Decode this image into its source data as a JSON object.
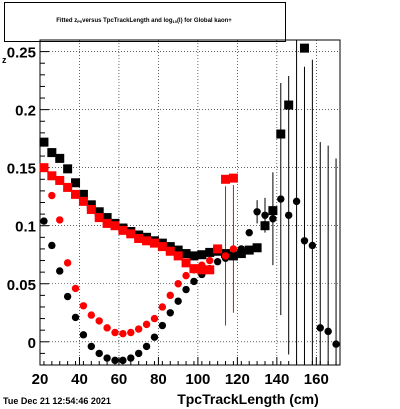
{
  "chart_data": {
    "type": "scatter",
    "title": "Fitted z_P0 versus TpcTrackLength and log_10(l) for Global kaon+",
    "title_parts": {
      "pre": "Fitted  z",
      "sub1": "P0",
      "mid": "  versus TpcTrackLength and log",
      "sub2": "10",
      "post": "(l) for Global kaon+"
    },
    "xlabel": "TpcTrackLength (cm)",
    "ylabel": "z",
    "xlim": [
      20,
      172
    ],
    "ylim": [
      -0.02,
      0.26
    ],
    "xticks": [
      20,
      40,
      60,
      80,
      100,
      120,
      140,
      160
    ],
    "yticks": [
      0,
      0.05,
      0.1,
      0.15,
      0.2,
      0.25
    ],
    "ytick_labels": [
      "0",
      "0.05",
      "0.1",
      "0.15",
      "0.2",
      "0.25"
    ],
    "grid": true,
    "timestamp": "Tue Dec 21 12:54:46 2021",
    "series": [
      {
        "marker": "square",
        "color": "#000000",
        "points": [
          [
            22,
            0.172,
            0
          ],
          [
            26,
            0.163,
            0
          ],
          [
            30,
            0.158,
            0
          ],
          [
            34,
            0.149,
            0
          ],
          [
            38,
            0.137,
            0
          ],
          [
            42,
            0.127,
            0
          ],
          [
            46,
            0.118,
            0
          ],
          [
            50,
            0.112,
            0
          ],
          [
            54,
            0.107,
            0
          ],
          [
            58,
            0.102,
            0
          ],
          [
            62,
            0.098,
            0
          ],
          [
            66,
            0.095,
            0
          ],
          [
            70,
            0.092,
            0
          ],
          [
            74,
            0.09,
            0
          ],
          [
            78,
            0.087,
            0
          ],
          [
            82,
            0.085,
            0
          ],
          [
            86,
            0.082,
            0
          ],
          [
            90,
            0.079,
            0
          ],
          [
            94,
            0.076,
            0
          ],
          [
            98,
            0.074,
            0
          ],
          [
            102,
            0.075,
            0
          ],
          [
            106,
            0.077,
            0
          ],
          [
            110,
            0.078,
            0
          ],
          [
            114,
            0.076,
            0
          ],
          [
            118,
            0.074,
            0
          ],
          [
            122,
            0.076,
            0
          ],
          [
            126,
            0.079,
            0
          ],
          [
            130,
            0.081,
            0
          ],
          [
            134,
            0.1,
            0
          ],
          [
            138,
            0.113,
            0
          ],
          [
            142,
            0.179,
            0
          ],
          [
            146,
            0.204,
            0
          ],
          [
            154,
            0.253,
            0
          ]
        ]
      },
      {
        "marker": "circle",
        "color": "#000000",
        "points": [
          [
            22,
            0.104,
            0
          ],
          [
            26,
            0.083,
            0
          ],
          [
            30,
            0.061,
            0
          ],
          [
            34,
            0.039,
            0
          ],
          [
            38,
            0.021,
            0
          ],
          [
            42,
            0.006,
            0
          ],
          [
            46,
            -0.004,
            0
          ],
          [
            50,
            -0.01,
            0
          ],
          [
            54,
            -0.014,
            0
          ],
          [
            58,
            -0.016,
            0
          ],
          [
            62,
            -0.016,
            0
          ],
          [
            66,
            -0.014,
            0
          ],
          [
            70,
            -0.01,
            0
          ],
          [
            74,
            -0.004,
            0
          ],
          [
            78,
            0.004,
            0
          ],
          [
            82,
            0.014,
            0
          ],
          [
            86,
            0.025,
            0
          ],
          [
            90,
            0.035,
            0
          ],
          [
            94,
            0.045,
            0
          ],
          [
            98,
            0.052,
            0
          ],
          [
            102,
            0.058,
            0
          ],
          [
            106,
            0.063,
            0
          ],
          [
            110,
            0.069,
            0
          ],
          [
            114,
            0.072,
            0
          ],
          [
            118,
            0.076,
            0
          ],
          [
            122,
            0.08,
            0
          ],
          [
            126,
            0.094,
            0
          ],
          [
            130,
            0.112,
            0.01
          ],
          [
            134,
            0.109,
            0.015
          ],
          [
            138,
            0.106,
            0.04
          ],
          [
            142,
            0.123,
            0.1
          ],
          [
            146,
            0.109,
            0.12
          ],
          [
            150,
            0.121,
            0.14
          ],
          [
            154,
            0.087,
            0.15
          ],
          [
            158,
            0.083,
            0.16
          ],
          [
            162,
            0.012,
            0.16
          ],
          [
            166,
            0.009,
            0.16
          ],
          [
            170,
            -0.002,
            0.16
          ]
        ]
      },
      {
        "marker": "square",
        "color": "#ff0000",
        "points": [
          [
            22,
            0.15,
            0
          ],
          [
            26,
            0.143,
            0
          ],
          [
            30,
            0.139,
            0
          ],
          [
            34,
            0.133,
            0
          ],
          [
            38,
            0.127,
            0
          ],
          [
            42,
            0.121,
            0
          ],
          [
            46,
            0.114,
            0
          ],
          [
            50,
            0.107,
            0
          ],
          [
            54,
            0.102,
            0
          ],
          [
            58,
            0.1,
            0
          ],
          [
            62,
            0.096,
            0
          ],
          [
            66,
            0.093,
            0
          ],
          [
            70,
            0.089,
            0
          ],
          [
            74,
            0.087,
            0
          ],
          [
            78,
            0.085,
            0
          ],
          [
            82,
            0.082,
            0
          ],
          [
            86,
            0.078,
            0
          ],
          [
            90,
            0.074,
            0
          ],
          [
            94,
            0.068,
            0
          ],
          [
            98,
            0.063,
            0
          ],
          [
            102,
            0.062,
            0
          ],
          [
            106,
            0.062,
            0
          ],
          [
            110,
            0.08,
            0
          ],
          [
            114,
            0.14,
            0
          ],
          [
            118,
            0.141,
            0
          ]
        ]
      },
      {
        "marker": "circle",
        "color": "#ff0000",
        "points": [
          [
            22,
            0.15,
            0
          ],
          [
            26,
            0.126,
            0
          ],
          [
            30,
            0.105,
            0
          ],
          [
            34,
            0.068,
            0
          ],
          [
            38,
            0.046,
            0
          ],
          [
            42,
            0.031,
            0
          ],
          [
            46,
            0.023,
            0
          ],
          [
            50,
            0.018,
            0
          ],
          [
            54,
            0.012,
            0
          ],
          [
            58,
            0.008,
            0
          ],
          [
            62,
            0.007,
            0
          ],
          [
            66,
            0.008,
            0
          ],
          [
            70,
            0.011,
            0
          ],
          [
            74,
            0.015,
            0
          ],
          [
            78,
            0.02,
            0
          ],
          [
            82,
            0.03,
            0
          ],
          [
            86,
            0.04,
            0
          ],
          [
            90,
            0.05,
            0
          ],
          [
            94,
            0.057,
            0
          ],
          [
            98,
            0.062,
            0
          ],
          [
            102,
            0.066,
            0
          ],
          [
            106,
            0.07,
            0
          ],
          [
            110,
            0.08,
            0
          ],
          [
            114,
            0.074,
            0.06
          ],
          [
            118,
            0.08,
            0.055
          ]
        ]
      }
    ]
  }
}
